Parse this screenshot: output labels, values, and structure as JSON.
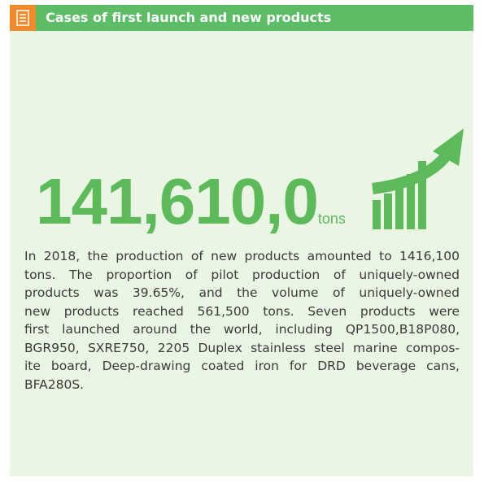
{
  "header": {
    "title": "Cases of first launch and new products"
  },
  "headline": {
    "value": "141,610,0",
    "unit": "tons"
  },
  "body": {
    "lines": [
      "In 2018, the production of new products amounted to 1416,100",
      "tons. The proportion of pilot production of uniquely-owned",
      "products was 39.65%, and the volume of uniquely-owned",
      "new products reached 561,500 tons. Seven products were",
      "first launched around the world, including QP1500,B18P080,",
      "BGR950, SXRE750, 2205 Duplex stainless steel marine compos-",
      "ite board, Deep-drawing coated iron for DRD beverage cans,",
      "BFA280S."
    ]
  }
}
